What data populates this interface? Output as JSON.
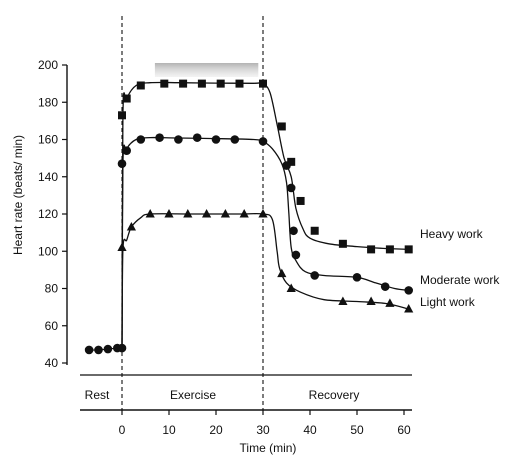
{
  "chart_data": {
    "type": "line",
    "title": "",
    "xlabel": "Time (min)",
    "ylabel": "Heart rate (beats/ min)",
    "xlim": [
      -8,
      62
    ],
    "ylim": [
      40,
      200
    ],
    "x_ticks": [
      "0",
      "10",
      "20",
      "30",
      "40",
      "50",
      "60"
    ],
    "y_ticks": [
      "40",
      "60",
      "80",
      "100",
      "120",
      "140",
      "160",
      "180",
      "200"
    ],
    "grid": false,
    "phases": [
      "Rest",
      "Exercise",
      "Recovery"
    ],
    "phase_boundaries": [
      0,
      30
    ],
    "shaded_band": [
      7,
      29
    ],
    "marker_color": "#111111",
    "series": [
      {
        "name": "Heavy work",
        "marker": "square",
        "points": [
          [
            0,
            173
          ],
          [
            1,
            182
          ],
          [
            4,
            189
          ],
          [
            9,
            190
          ],
          [
            13,
            190
          ],
          [
            17,
            190
          ],
          [
            21,
            190
          ],
          [
            25,
            190
          ],
          [
            30,
            190
          ],
          [
            34,
            167
          ],
          [
            36,
            148
          ],
          [
            38,
            127
          ],
          [
            41,
            111
          ],
          [
            47,
            104
          ],
          [
            53,
            101
          ],
          [
            57,
            101
          ],
          [
            61,
            101
          ]
        ],
        "curve": [
          [
            0,
            48
          ],
          [
            0.2,
            173
          ],
          [
            1,
            182
          ],
          [
            3,
            189
          ],
          [
            6,
            190.5
          ],
          [
            12,
            190.5
          ],
          [
            20,
            190.3
          ],
          [
            28,
            190.2
          ],
          [
            30,
            190
          ],
          [
            31.5,
            185
          ],
          [
            33,
            168
          ],
          [
            34.5,
            150
          ],
          [
            36,
            140
          ],
          [
            37,
            123
          ],
          [
            38.5,
            112
          ],
          [
            40,
            107
          ],
          [
            44,
            104
          ],
          [
            50,
            102.5
          ],
          [
            56,
            101.5
          ],
          [
            61,
            101
          ]
        ]
      },
      {
        "name": "Moderate work",
        "marker": "circle",
        "points": [
          [
            0,
            147
          ],
          [
            1,
            154
          ],
          [
            4,
            160
          ],
          [
            8,
            161
          ],
          [
            12,
            160
          ],
          [
            16,
            161
          ],
          [
            20,
            160
          ],
          [
            24,
            160
          ],
          [
            30,
            159
          ],
          [
            35,
            146
          ],
          [
            36,
            134
          ],
          [
            36.5,
            111
          ],
          [
            37,
            98
          ],
          [
            41,
            87
          ],
          [
            50,
            86
          ],
          [
            56,
            81
          ],
          [
            61,
            79
          ]
        ],
        "curve": [
          [
            0,
            48
          ],
          [
            0.2,
            147
          ],
          [
            1,
            155
          ],
          [
            3,
            160
          ],
          [
            6,
            161
          ],
          [
            12,
            160.8
          ],
          [
            20,
            160.5
          ],
          [
            28,
            160
          ],
          [
            30,
            159
          ],
          [
            32,
            155
          ],
          [
            34,
            147
          ],
          [
            35,
            137
          ],
          [
            35.5,
            120
          ],
          [
            36,
            102
          ],
          [
            37,
            95
          ],
          [
            39,
            89
          ],
          [
            43,
            87
          ],
          [
            50,
            86
          ],
          [
            54,
            83
          ],
          [
            58,
            80
          ],
          [
            61,
            79
          ]
        ]
      },
      {
        "name": "Light work",
        "marker": "triangle",
        "points": [
          [
            0,
            102
          ],
          [
            2,
            113
          ],
          [
            6,
            120
          ],
          [
            10,
            120
          ],
          [
            14,
            120
          ],
          [
            18,
            120
          ],
          [
            22,
            120
          ],
          [
            26,
            120
          ],
          [
            30,
            120
          ],
          [
            34,
            88
          ],
          [
            36,
            80
          ],
          [
            47,
            73
          ],
          [
            53,
            73
          ],
          [
            57,
            72
          ],
          [
            61,
            69
          ]
        ],
        "curve": [
          [
            0,
            48
          ],
          [
            0.2,
            101
          ],
          [
            1,
            106
          ],
          [
            2,
            113
          ],
          [
            4,
            118
          ],
          [
            6,
            120
          ],
          [
            15,
            120
          ],
          [
            25,
            120
          ],
          [
            30,
            120
          ],
          [
            32,
            117
          ],
          [
            33,
            100
          ],
          [
            33.5,
            91
          ],
          [
            35,
            83
          ],
          [
            38,
            78
          ],
          [
            43,
            74
          ],
          [
            50,
            73
          ],
          [
            56,
            72
          ],
          [
            61,
            69
          ]
        ]
      }
    ],
    "rest_points": [
      [
        -7,
        47
      ],
      [
        -5,
        47
      ],
      [
        -3,
        47.5
      ],
      [
        -1,
        48
      ],
      [
        0,
        48
      ]
    ]
  }
}
